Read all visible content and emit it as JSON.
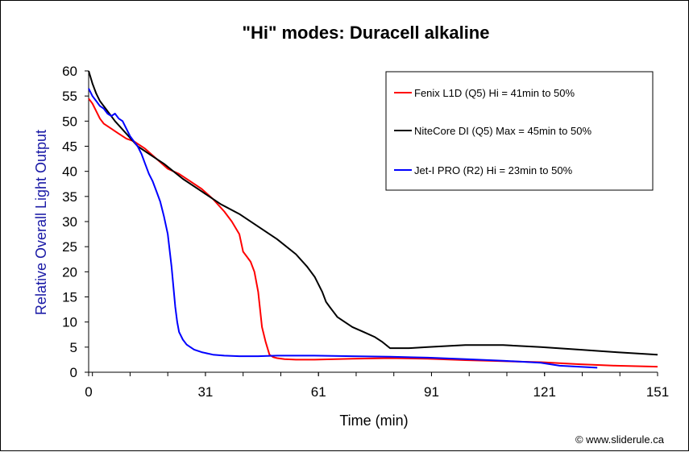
{
  "chart_data": {
    "type": "line",
    "title": "\"Hi\" modes: Duracell alkaline",
    "xlabel": "Time (min)",
    "ylabel": "Relative Overall Light Output",
    "xlim": [
      0,
      151
    ],
    "ylim": [
      0,
      60
    ],
    "xticks": [
      0,
      31,
      61,
      91,
      121,
      151
    ],
    "yticks": [
      0,
      5,
      10,
      15,
      20,
      25,
      30,
      35,
      40,
      45,
      50,
      55,
      60
    ],
    "grid": false,
    "legend_position": "top-right",
    "credit": "© www.sliderule.ca",
    "series": [
      {
        "name": "Fenix L1D (Q5) Hi = 41min to 50%",
        "color": "#ff0000",
        "x": [
          0,
          1,
          2,
          3,
          4,
          5,
          6,
          7,
          8,
          10,
          12,
          15,
          18,
          21,
          24,
          27,
          30,
          33,
          36,
          38,
          40,
          41,
          42,
          43,
          44,
          45,
          46,
          47,
          48,
          49,
          50,
          52,
          55,
          60,
          70,
          80,
          90,
          100,
          110,
          120,
          130,
          140,
          151
        ],
        "y": [
          54.5,
          53.5,
          52,
          50.5,
          49.5,
          49,
          48.5,
          48,
          47.5,
          46.5,
          46,
          44.5,
          42.5,
          40.5,
          39.5,
          38,
          36.5,
          34.5,
          32,
          30,
          27.5,
          24,
          23,
          22,
          20,
          16,
          9,
          6,
          3.5,
          3,
          2.8,
          2.6,
          2.5,
          2.5,
          2.7,
          2.8,
          2.7,
          2.4,
          2.2,
          2,
          1.6,
          1.3,
          1.1
        ]
      },
      {
        "name": "NiteCore DI (Q5) Max = 45min to 50%",
        "color": "#000000",
        "x": [
          0,
          1,
          2,
          3,
          4,
          5,
          7,
          10,
          13,
          16,
          20,
          25,
          30,
          35,
          40,
          45,
          50,
          55,
          58,
          60,
          62,
          63,
          64,
          65,
          66,
          68,
          70,
          73,
          76,
          78,
          80,
          85,
          90,
          100,
          110,
          120,
          130,
          140,
          151
        ],
        "y": [
          60,
          57.5,
          55.5,
          54,
          53,
          52,
          50,
          47.5,
          45,
          43.5,
          41.5,
          38.5,
          36,
          33.5,
          31.5,
          29,
          26.5,
          23.5,
          21,
          19,
          16,
          14,
          13,
          12,
          11,
          10,
          9,
          8,
          7,
          6,
          4.8,
          4.8,
          5,
          5.4,
          5.4,
          5,
          4.5,
          4,
          3.5
        ]
      },
      {
        "name": "Jet-I PRO (R2) Hi = 23min to 50%",
        "color": "#0000ff",
        "x": [
          0,
          1,
          2,
          3,
          4,
          5,
          6,
          7,
          8,
          9,
          10,
          11,
          12,
          13,
          14,
          15,
          16,
          17,
          18,
          19,
          20,
          21,
          22,
          23,
          23.5,
          24,
          25,
          26,
          27,
          28,
          30,
          33,
          36,
          40,
          45,
          50,
          60,
          70,
          80,
          90,
          100,
          110,
          120,
          125,
          130,
          135
        ],
        "y": [
          56.5,
          55,
          54,
          53,
          52.5,
          51.5,
          51,
          51.5,
          50.5,
          50,
          48.5,
          47,
          46,
          45,
          43.5,
          41.5,
          39.5,
          38,
          36,
          34,
          31,
          27.5,
          21,
          13,
          10,
          8,
          6.5,
          5.5,
          5,
          4.5,
          4,
          3.5,
          3.3,
          3.2,
          3.2,
          3.3,
          3.3,
          3.2,
          3.1,
          2.9,
          2.6,
          2.3,
          1.9,
          1.3,
          1.1,
          0.9
        ]
      }
    ]
  }
}
